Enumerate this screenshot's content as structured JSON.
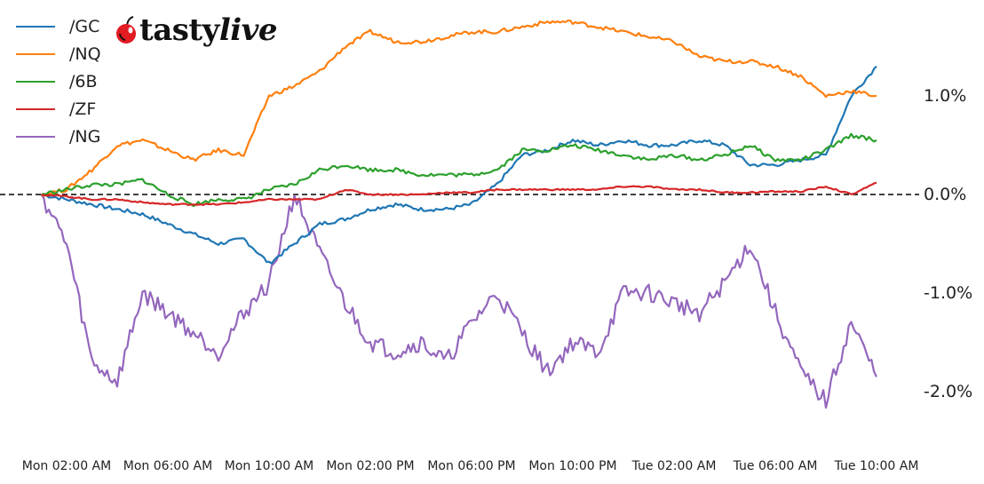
{
  "logo": {
    "brand_prefix": "tasty",
    "brand_suffix": "live",
    "icon": "cherry-icon",
    "cherry_color": "#e31b23"
  },
  "legend": [
    {
      "label": "/GC",
      "color": "#1f77b4"
    },
    {
      "label": "/NQ",
      "color": "#ff7f0e"
    },
    {
      "label": "/6B",
      "color": "#2ca02c"
    },
    {
      "label": "/ZF",
      "color": "#d62728"
    },
    {
      "label": "/NG",
      "color": "#9467bd"
    }
  ],
  "y_ticks": [
    {
      "label": "1.0%",
      "value": 1.0
    },
    {
      "label": "0.0%",
      "value": 0.0
    },
    {
      "label": "-1.0%",
      "value": -1.0
    },
    {
      "label": "-2.0%",
      "value": -2.0
    }
  ],
  "x_ticks": [
    {
      "label": "Mon 02:00 AM",
      "hour": 2
    },
    {
      "label": "Mon 06:00 AM",
      "hour": 6
    },
    {
      "label": "Mon 10:00 AM",
      "hour": 10
    },
    {
      "label": "Mon 02:00 PM",
      "hour": 14
    },
    {
      "label": "Mon 06:00 PM",
      "hour": 18
    },
    {
      "label": "Mon 10:00 PM",
      "hour": 22
    },
    {
      "label": "Tue 02:00 AM",
      "hour": 26
    },
    {
      "label": "Tue 06:00 AM",
      "hour": 30
    },
    {
      "label": "Tue 10:00 AM",
      "hour": 34
    }
  ],
  "chart_data": {
    "type": "line",
    "title": "",
    "xlabel": "",
    "ylabel": "",
    "y_unit": "% change",
    "ylim": [
      -2.4,
      1.85
    ],
    "x_hours_since_mon_0000": [
      1,
      2,
      3,
      4,
      5,
      6,
      7,
      8,
      9,
      10,
      11,
      12,
      13,
      14,
      15,
      16,
      17,
      18,
      19,
      20,
      21,
      22,
      23,
      24,
      25,
      26,
      27,
      28,
      29,
      30,
      31,
      32,
      33,
      34
    ],
    "x_labels_note": "Mon 01:00 AM through Tue 10:00 AM, hourly",
    "reference_line": {
      "y": 0.0,
      "style": "dashed",
      "color": "#000000"
    },
    "grid": false,
    "legend_position": "upper left",
    "y_axis_position": "right",
    "series": [
      {
        "name": "/GC",
        "color": "#1f77b4",
        "values": [
          0.0,
          -0.05,
          -0.1,
          -0.15,
          -0.2,
          -0.3,
          -0.4,
          -0.5,
          -0.45,
          -0.7,
          -0.5,
          -0.3,
          -0.25,
          -0.15,
          -0.1,
          -0.15,
          -0.15,
          -0.1,
          0.1,
          0.4,
          0.45,
          0.55,
          0.5,
          0.55,
          0.5,
          0.5,
          0.55,
          0.5,
          0.3,
          0.3,
          0.35,
          0.4,
          1.0,
          1.3
        ]
      },
      {
        "name": "/NQ",
        "color": "#ff7f0e",
        "values": [
          0.0,
          0.05,
          0.25,
          0.5,
          0.55,
          0.45,
          0.35,
          0.45,
          0.4,
          1.0,
          1.1,
          1.25,
          1.5,
          1.65,
          1.55,
          1.55,
          1.6,
          1.65,
          1.65,
          1.7,
          1.75,
          1.75,
          1.7,
          1.65,
          1.6,
          1.55,
          1.4,
          1.35,
          1.35,
          1.3,
          1.2,
          1.0,
          1.05,
          1.0
        ]
      },
      {
        "name": "/6B",
        "color": "#2ca02c",
        "values": [
          0.0,
          0.05,
          0.1,
          0.1,
          0.15,
          0.0,
          -0.1,
          -0.05,
          -0.05,
          0.05,
          0.1,
          0.25,
          0.3,
          0.25,
          0.25,
          0.2,
          0.2,
          0.2,
          0.25,
          0.45,
          0.45,
          0.5,
          0.45,
          0.4,
          0.35,
          0.4,
          0.35,
          0.4,
          0.5,
          0.35,
          0.35,
          0.45,
          0.6,
          0.55
        ]
      },
      {
        "name": "/ZF",
        "color": "#d62728",
        "values": [
          0.0,
          -0.02,
          -0.05,
          -0.05,
          -0.08,
          -0.1,
          -0.1,
          -0.1,
          -0.08,
          -0.05,
          -0.05,
          -0.05,
          0.05,
          0.0,
          0.0,
          0.0,
          0.02,
          0.02,
          0.05,
          0.05,
          0.05,
          0.05,
          0.05,
          0.08,
          0.08,
          0.05,
          0.05,
          0.02,
          0.02,
          0.03,
          0.03,
          0.08,
          0.0,
          0.12
        ]
      },
      {
        "name": "/NG",
        "color": "#9467bd",
        "values": [
          0.0,
          -0.5,
          -1.7,
          -1.9,
          -1.0,
          -1.2,
          -1.4,
          -1.6,
          -1.2,
          -0.9,
          0.0,
          -0.6,
          -1.1,
          -1.5,
          -1.6,
          -1.5,
          -1.7,
          -1.3,
          -1.0,
          -1.4,
          -1.8,
          -1.5,
          -1.6,
          -1.0,
          -1.0,
          -1.1,
          -1.2,
          -0.9,
          -0.5,
          -1.2,
          -1.8,
          -2.1,
          -1.3,
          -1.85
        ]
      }
    ]
  }
}
